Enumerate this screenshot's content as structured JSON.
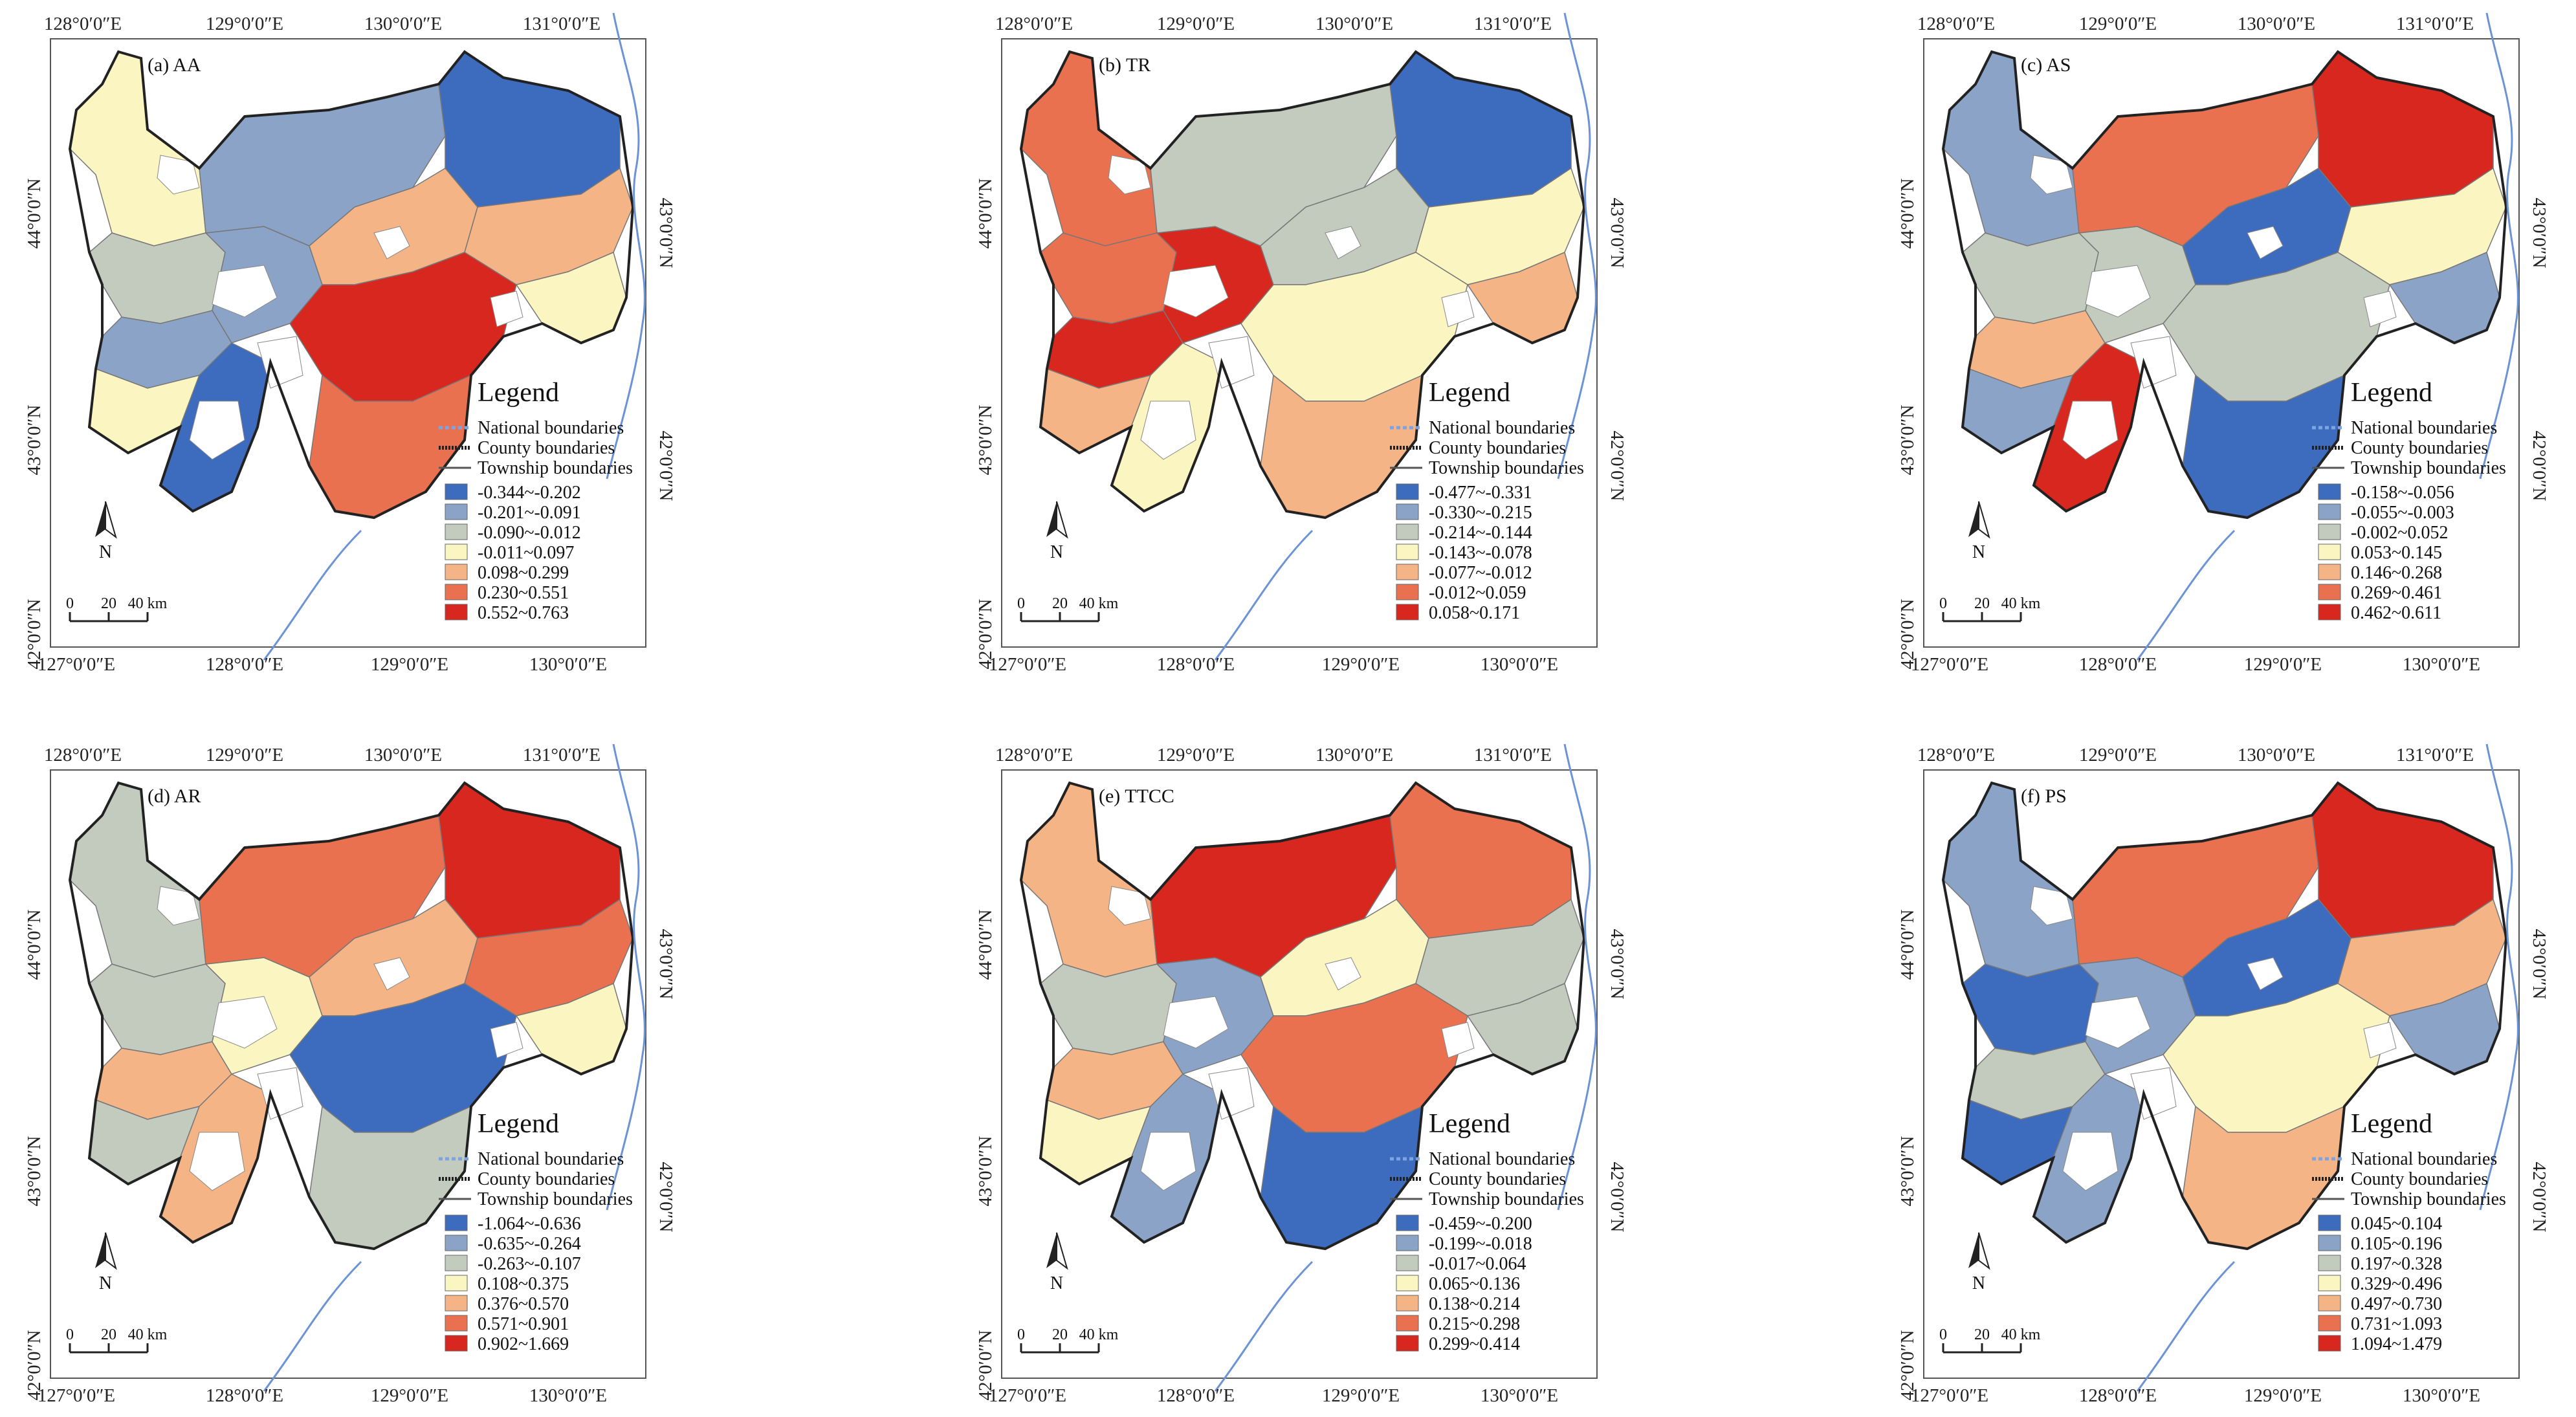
{
  "colors": [
    "#3d6cbf",
    "#8ba3c7",
    "#c2cbbe",
    "#fbf6c1",
    "#f4b486",
    "#e9714f",
    "#d8271f"
  ],
  "boundary_legend": [
    {
      "label": "National boundaries",
      "style": "national"
    },
    {
      "label": "County boundaries",
      "style": "county"
    },
    {
      "label": "Township boundaries",
      "style": "township"
    }
  ],
  "legend_title": "Legend",
  "north_label": "N",
  "scale": {
    "zero": "0",
    "mid": "20",
    "end": "40 km"
  },
  "axes": {
    "top": [
      "128°0′0″E",
      "129°0′0″E",
      "130°0′0″E",
      "131°0′0″E"
    ],
    "bottom": [
      "127°0′0″E",
      "128°0′0″E",
      "129°0′0″E",
      "130°0′0″E"
    ],
    "left": [
      "44°0′0″N",
      "43°0′0″N",
      "42°0′0″N"
    ],
    "right": [
      "43°0′0″N",
      "42°0′0″N"
    ]
  },
  "panels": [
    {
      "title": "(a) AA",
      "classes": [
        "-0.344~-0.202",
        "-0.201~-0.091",
        "-0.090~-0.012",
        "-0.011~0.097",
        "0.098~0.299",
        "0.230~0.551",
        "0.552~0.763"
      ],
      "regions": {
        "nw": 3,
        "w": 2,
        "sw": 3,
        "center": 1,
        "n": 1,
        "ne": 0,
        "mid": 4,
        "east": 4,
        "ecoast": 3,
        "south": 6,
        "far_south": 5,
        "sw_tip": 0,
        "lower_w": 1
      }
    },
    {
      "title": "(b) TR",
      "classes": [
        "-0.477~-0.331",
        "-0.330~-0.215",
        "-0.214~-0.144",
        "-0.143~-0.078",
        "-0.077~-0.012",
        "-0.012~0.059",
        "0.058~0.171"
      ],
      "regions": {
        "nw": 5,
        "w": 5,
        "sw": 4,
        "center": 6,
        "n": 2,
        "ne": 0,
        "mid": 2,
        "east": 3,
        "ecoast": 4,
        "south": 3,
        "far_south": 4,
        "sw_tip": 3,
        "lower_w": 6
      }
    },
    {
      "title": "(c) AS",
      "classes": [
        "-0.158~-0.056",
        "-0.055~-0.003",
        "-0.002~0.052",
        "0.053~0.145",
        "0.146~0.268",
        "0.269~0.461",
        "0.462~0.611"
      ],
      "regions": {
        "nw": 1,
        "w": 2,
        "sw": 1,
        "center": 2,
        "n": 5,
        "ne": 6,
        "mid": 0,
        "east": 3,
        "ecoast": 1,
        "south": 2,
        "far_south": 0,
        "sw_tip": 6,
        "lower_w": 4
      }
    },
    {
      "title": "(d) AR",
      "classes": [
        "-1.064~-0.636",
        "-0.635~-0.264",
        "-0.263~-0.107",
        "0.108~0.375",
        "0.376~0.570",
        "0.571~0.901",
        "0.902~1.669"
      ],
      "regions": {
        "nw": 2,
        "w": 2,
        "sw": 2,
        "center": 3,
        "n": 5,
        "ne": 6,
        "mid": 4,
        "east": 5,
        "ecoast": 3,
        "south": 0,
        "far_south": 2,
        "sw_tip": 4,
        "lower_w": 4
      }
    },
    {
      "title": "(e) TTCC",
      "classes": [
        "-0.459~-0.200",
        "-0.199~-0.018",
        "-0.017~0.064",
        "0.065~0.136",
        "0.138~0.214",
        "0.215~0.298",
        "0.299~0.414"
      ],
      "regions": {
        "nw": 4,
        "w": 2,
        "sw": 3,
        "center": 1,
        "n": 6,
        "ne": 5,
        "mid": 3,
        "east": 2,
        "ecoast": 2,
        "south": 5,
        "far_south": 0,
        "sw_tip": 1,
        "lower_w": 4
      }
    },
    {
      "title": "(f) PS",
      "classes": [
        "0.045~0.104",
        "0.105~0.196",
        "0.197~0.328",
        "0.329~0.496",
        "0.497~0.730",
        "0.731~1.093",
        "1.094~1.479"
      ],
      "regions": {
        "nw": 1,
        "w": 0,
        "sw": 0,
        "center": 1,
        "n": 5,
        "ne": 6,
        "mid": 0,
        "east": 4,
        "ecoast": 1,
        "south": 3,
        "far_south": 4,
        "sw_tip": 1,
        "lower_w": 2
      }
    }
  ]
}
